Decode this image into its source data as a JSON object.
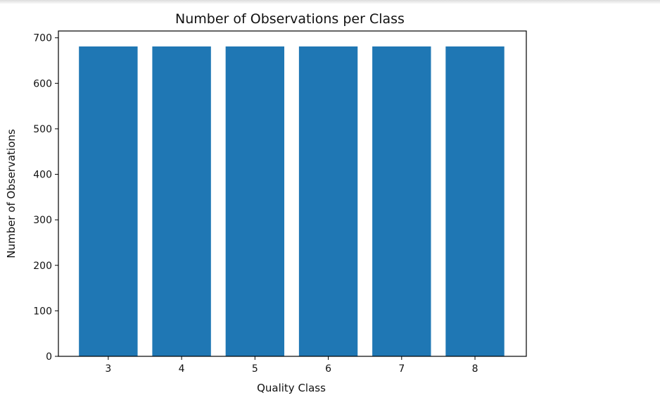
{
  "chart_data": {
    "type": "bar",
    "title": "Number of Observations per  Class",
    "xlabel": "Quality Class",
    "ylabel": "Number of Observations",
    "categories": [
      "3",
      "4",
      "5",
      "6",
      "7",
      "8"
    ],
    "x": [
      3,
      4,
      5,
      6,
      7,
      8
    ],
    "values": [
      681,
      681,
      681,
      681,
      681,
      681
    ],
    "ylim": [
      0,
      715
    ],
    "xlim": [
      2.32,
      8.7
    ],
    "yticks": [
      0,
      100,
      200,
      300,
      400,
      500,
      600,
      700
    ],
    "grid": false,
    "bar_color": "#1f77b4"
  }
}
